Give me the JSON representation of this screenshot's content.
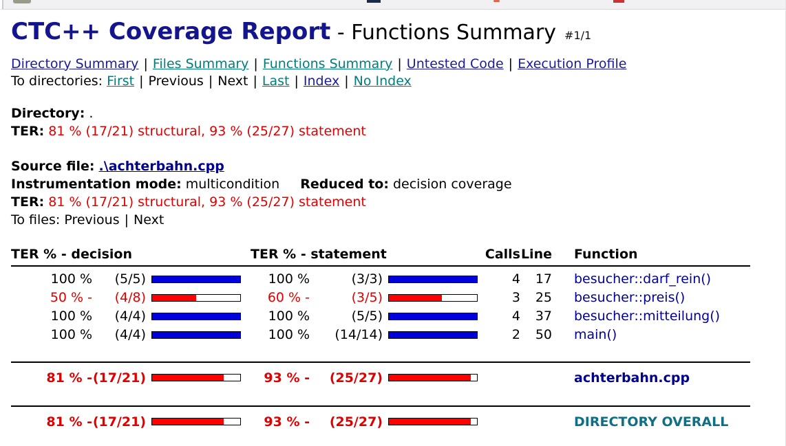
{
  "title": {
    "brand": "CTC++ Coverage Report",
    "dash": "-",
    "section": "Functions Summary",
    "page": "#1/1"
  },
  "nav_reports": {
    "separator": "|",
    "items": [
      {
        "label": "Directory Summary",
        "style": "navy"
      },
      {
        "label": "Files Summary",
        "style": "teal"
      },
      {
        "label": "Functions Summary",
        "style": "teal"
      },
      {
        "label": "Untested Code",
        "style": "navy"
      },
      {
        "label": "Execution Profile",
        "style": "navy"
      }
    ]
  },
  "nav_directories": {
    "label": "To directories:",
    "separator": "|",
    "items": [
      {
        "label": "First",
        "link": true,
        "style": "teal"
      },
      {
        "label": "Previous",
        "link": false,
        "style": "plain"
      },
      {
        "label": "Next",
        "link": false,
        "style": "plain"
      },
      {
        "label": "Last",
        "link": true,
        "style": "teal"
      },
      {
        "label": "Index",
        "link": true,
        "style": "navy"
      },
      {
        "label": "No Index",
        "link": true,
        "style": "teal"
      }
    ]
  },
  "directory": {
    "label": "Directory:",
    "value": "."
  },
  "directory_ter": {
    "label": "TER:",
    "value": "81 % (17/21) structural, 93 % (25/27) statement"
  },
  "source": {
    "label": "Source file:",
    "file": ".\\achterbahn.cpp"
  },
  "instrumentation": {
    "label": "Instrumentation mode:",
    "value": "multicondition",
    "reduced_label": "Reduced to:",
    "reduced_value": "decision coverage"
  },
  "file_ter": {
    "label": "TER:",
    "value": "81 % (17/21) structural, 93 % (25/27) statement"
  },
  "nav_files": {
    "label": "To files:",
    "separator": "|",
    "items": [
      {
        "label": "Previous",
        "link": false
      },
      {
        "label": "Next",
        "link": false
      }
    ]
  },
  "table": {
    "headers": {
      "decision": "TER % - decision",
      "statement": "TER % - statement",
      "calls": "Calls",
      "line": "Line",
      "function": "Function"
    },
    "rows": [
      {
        "decision_pct": "100 %",
        "decision_ratio": "(5/5)",
        "decision_fill": 100,
        "statement_pct": "100 %",
        "statement_ratio": "(3/3)",
        "statement_fill": 100,
        "calls": "4",
        "line": "17",
        "function": "besucher::darf_rein()"
      },
      {
        "decision_pct": "50 % -",
        "decision_ratio": "(4/8)",
        "decision_fill": 50,
        "statement_pct": "60 % -",
        "statement_ratio": "(3/5)",
        "statement_fill": 60,
        "calls": "3",
        "line": "25",
        "function": "besucher::preis()"
      },
      {
        "decision_pct": "100 %",
        "decision_ratio": "(4/4)",
        "decision_fill": 100,
        "statement_pct": "100 %",
        "statement_ratio": "(5/5)",
        "statement_fill": 100,
        "calls": "4",
        "line": "37",
        "function": "besucher::mitteilung()"
      },
      {
        "decision_pct": "100 %",
        "decision_ratio": "(4/4)",
        "decision_fill": 100,
        "statement_pct": "100 %",
        "statement_ratio": "(14/14)",
        "statement_fill": 100,
        "calls": "2",
        "line": "50",
        "function": "main()"
      }
    ],
    "file_summary": {
      "decision_pct": "81 % -",
      "decision_ratio": "(17/21)",
      "decision_fill": 81,
      "statement_pct": "93 % -",
      "statement_ratio": "(25/27)",
      "statement_fill": 93,
      "label": "achterbahn.cpp"
    },
    "directory_summary": {
      "decision_pct": "81 % -",
      "decision_ratio": "(17/21)",
      "decision_fill": 81,
      "statement_pct": "93 % -",
      "statement_ratio": "(25/27)",
      "statement_fill": 93,
      "label": "DIRECTORY OVERALL"
    }
  },
  "colors": {
    "title_navy": "#14148c",
    "link_navy": "#1b1b9e",
    "link_teal": "#007d7e",
    "alert_red": "#e00000",
    "bar_red": "#ff0000",
    "bar_blue": "#0000dd",
    "function_navy": "#000099",
    "file_label_navy": "#00008b",
    "overall_teal": "#0e6f85"
  }
}
